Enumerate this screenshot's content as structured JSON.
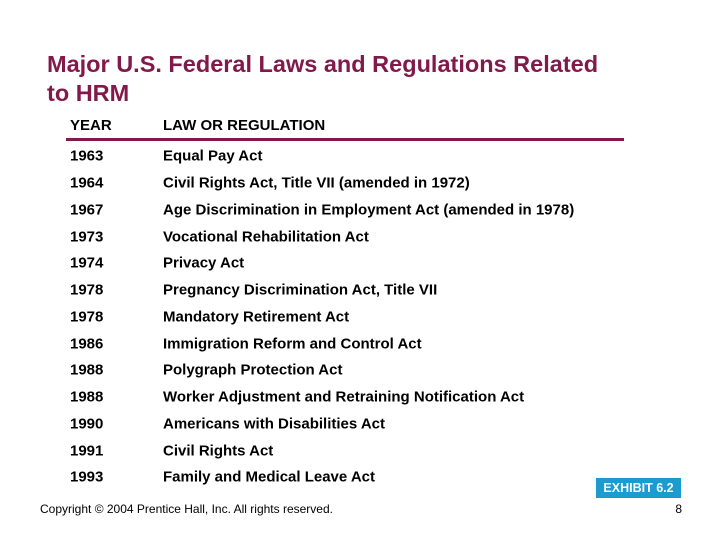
{
  "slide": {
    "title_lines": [
      "Major U.S. Federal Laws and Regulations Related",
      "to HRM"
    ],
    "table": {
      "columns": {
        "year": "YEAR",
        "law": "LAW OR REGULATION"
      },
      "rows": [
        {
          "year": "1963",
          "law": "Equal Pay Act"
        },
        {
          "year": "1964",
          "law": "Civil Rights Act, Title VII (amended in 1972)"
        },
        {
          "year": "1967",
          "law": "Age Discrimination in Employment Act (amended in 1978)"
        },
        {
          "year": "1973",
          "law": "Vocational Rehabilitation Act"
        },
        {
          "year": "1974",
          "law": "Privacy Act"
        },
        {
          "year": "1978",
          "law": "Pregnancy Discrimination Act, Title VII"
        },
        {
          "year": "1978",
          "law": "Mandatory Retirement Act"
        },
        {
          "year": "1986",
          "law": "Immigration Reform and Control Act"
        },
        {
          "year": "1988",
          "law": "Polygraph Protection Act"
        },
        {
          "year": "1988",
          "law": "Worker Adjustment and Retraining Notification Act"
        },
        {
          "year": "1990",
          "law": "Americans with Disabilities Act"
        },
        {
          "year": "1991",
          "law": "Civil Rights Act"
        },
        {
          "year": "1993",
          "law": "Family and Medical Leave Act"
        }
      ]
    },
    "exhibit_badge": "EXHIBIT 6.2",
    "footer": {
      "copyright": "Copyright © 2004 Prentice Hall, Inc. All rights reserved.",
      "page": "8"
    },
    "colors": {
      "accent_maroon": "#82194B",
      "badge_blue": "#1C9BCE",
      "text": "#000000",
      "background": "#FFFFFF"
    }
  }
}
